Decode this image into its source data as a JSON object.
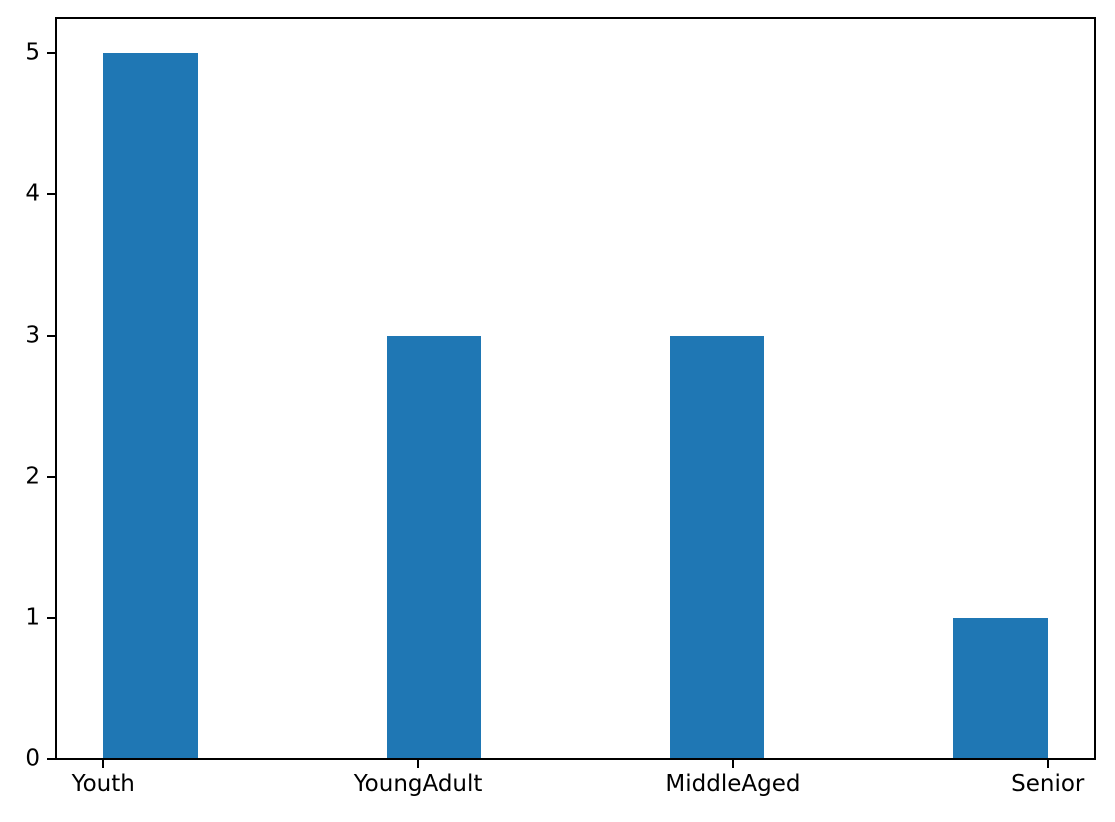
{
  "chart_data": {
    "type": "bar",
    "title": "",
    "xlabel": "",
    "ylabel": "",
    "categories": [
      "Youth",
      "YoungAdult",
      "MiddleAged",
      "Senior"
    ],
    "values": [
      5,
      3,
      3,
      1
    ],
    "bars": [
      {
        "label": "Youth",
        "x0": 0.0,
        "x1": 0.3,
        "value": 5
      },
      {
        "label": "YoungAdult",
        "x0": 0.9,
        "x1": 1.2,
        "value": 3
      },
      {
        "label": "MiddleAged",
        "x0": 1.8,
        "x1": 2.1,
        "value": 3
      },
      {
        "label": "Senior",
        "x0": 2.7,
        "x1": 3.0,
        "value": 1
      }
    ],
    "x_ticks": [
      {
        "pos": 0,
        "label": "Youth"
      },
      {
        "pos": 1,
        "label": "YoungAdult"
      },
      {
        "pos": 2,
        "label": "MiddleAged"
      },
      {
        "pos": 3,
        "label": "Senior"
      }
    ],
    "y_ticks": [
      0,
      1,
      2,
      3,
      4,
      5
    ],
    "xlim": [
      -0.15,
      3.15
    ],
    "ylim": [
      0,
      5.25
    ],
    "grid": false,
    "legend": null,
    "bar_color": "#1f77b4",
    "axis_color": "#000000",
    "text_color": "#000000",
    "background_color": "#ffffff"
  }
}
